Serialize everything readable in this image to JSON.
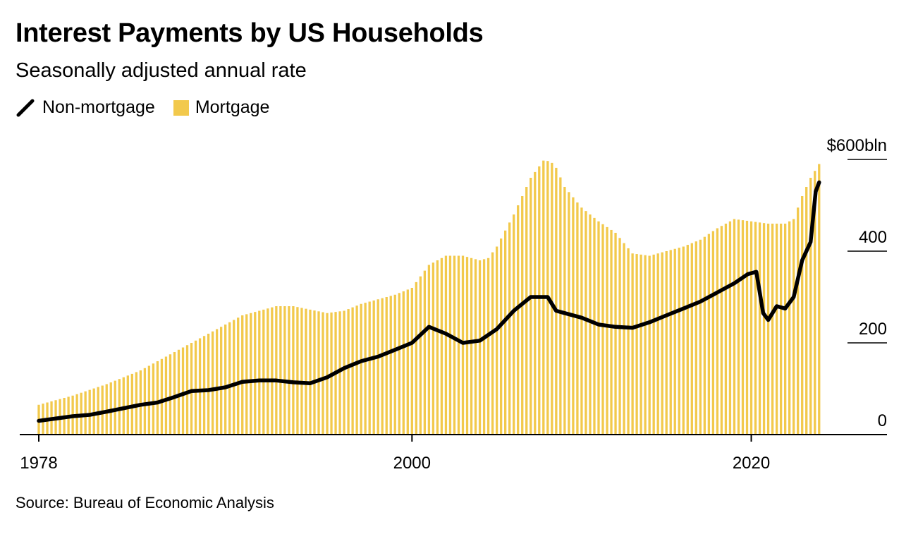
{
  "header": {
    "title": "Interest Payments by US Households",
    "subtitle": "Seasonally adjusted annual rate"
  },
  "legend": {
    "line_label": "Non-mortgage",
    "bar_label": "Mortgage"
  },
  "footer": {
    "source": "Source: Bureau of Economic Analysis"
  },
  "colors": {
    "mortgage": "#f2c94c",
    "non_mortgage": "#000000",
    "axis": "#000000"
  },
  "chart_data": {
    "type": "bar",
    "title": "Interest Payments by US Households",
    "subtitle": "Seasonally adjusted annual rate",
    "xlabel": "",
    "ylabel": "",
    "xlim": [
      1978,
      2028
    ],
    "ylim": [
      0,
      600
    ],
    "x_ticks": [
      {
        "value": 1978,
        "label": "1978"
      },
      {
        "value": 2000,
        "label": "2000"
      },
      {
        "value": 2020,
        "label": "2020"
      }
    ],
    "y_ticks": [
      {
        "value": 0,
        "label": "0"
      },
      {
        "value": 200,
        "label": "200"
      },
      {
        "value": 400,
        "label": "400"
      },
      {
        "value": 600,
        "label": "$600bln"
      }
    ],
    "series": [
      {
        "name": "Mortgage",
        "type": "bar",
        "frequency": "quarterly",
        "x": [
          1978,
          1980,
          1982,
          1984,
          1986,
          1988,
          1990,
          1992,
          1993,
          1995,
          1996,
          1997,
          1998,
          1999,
          2000,
          2001,
          2002,
          2003,
          2004,
          2004.5,
          2005,
          2006,
          2007,
          2007.8,
          2008.4,
          2009,
          2010,
          2011,
          2012,
          2013,
          2014,
          2015,
          2016,
          2017,
          2018,
          2019,
          2020,
          2021,
          2022,
          2022.5,
          2023,
          2023.5,
          2024
        ],
        "values": [
          65,
          85,
          110,
          140,
          180,
          220,
          260,
          280,
          280,
          265,
          270,
          285,
          295,
          305,
          320,
          370,
          390,
          390,
          380,
          385,
          410,
          480,
          560,
          600,
          590,
          540,
          495,
          465,
          440,
          395,
          390,
          400,
          410,
          425,
          450,
          470,
          465,
          460,
          460,
          470,
          520,
          560,
          590
        ]
      },
      {
        "name": "Non-mortgage",
        "type": "line",
        "frequency": "quarterly",
        "x": [
          1978,
          1980,
          1981,
          1982,
          1984,
          1985,
          1986,
          1987,
          1988,
          1989,
          1990,
          1991,
          1992,
          1993,
          1994,
          1995,
          1996,
          1997,
          1998,
          1999,
          2000,
          2001,
          2002,
          2003,
          2004,
          2005,
          2006,
          2007,
          2008,
          2008.5,
          2009,
          2010,
          2011,
          2012,
          2013,
          2014,
          2015,
          2016,
          2017,
          2018,
          2019,
          2019.8,
          2020.3,
          2020.7,
          2021,
          2021.5,
          2022,
          2022.5,
          2023,
          2023.5,
          2023.8,
          2024
        ],
        "values": [
          30,
          40,
          43,
          50,
          65,
          70,
          82,
          95,
          97,
          103,
          115,
          118,
          118,
          114,
          112,
          125,
          145,
          160,
          170,
          185,
          200,
          235,
          220,
          200,
          205,
          230,
          270,
          300,
          300,
          270,
          265,
          255,
          240,
          235,
          233,
          245,
          260,
          275,
          290,
          310,
          330,
          350,
          355,
          265,
          250,
          280,
          275,
          300,
          380,
          420,
          530,
          550
        ]
      }
    ]
  }
}
